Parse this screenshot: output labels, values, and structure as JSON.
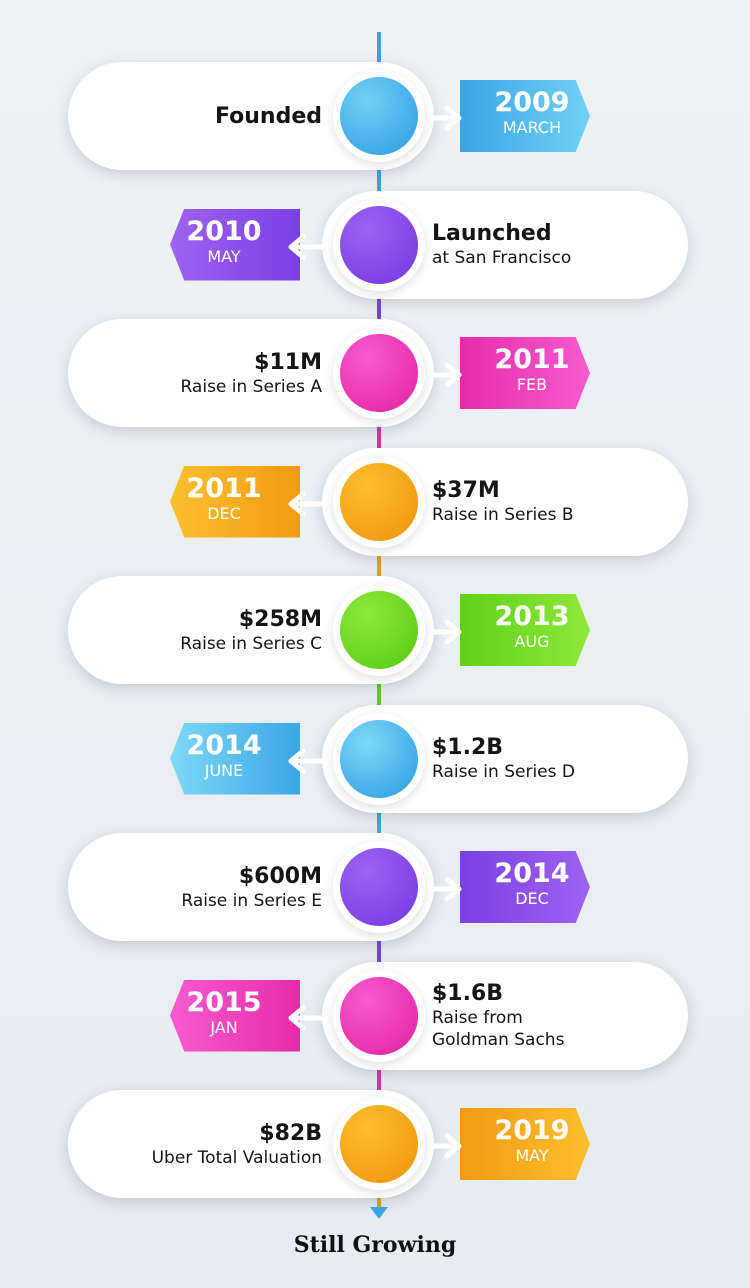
{
  "milestones": [
    {
      "title": "Founded",
      "subtitle": "",
      "year": "2009",
      "month": "MARCH",
      "side": "left",
      "color": "#3aa5e6",
      "color_light": "#6fd2f5"
    },
    {
      "title": "Launched",
      "subtitle": "at San Francisco",
      "year": "2010",
      "month": "MAY",
      "side": "right",
      "color": "#7b3fe4",
      "color_light": "#9e63f0"
    },
    {
      "title": "$11M",
      "subtitle": "Raise in Series A",
      "year": "2011",
      "month": "FEB",
      "side": "left",
      "color": "#e62ca8",
      "color_light": "#f75bd0"
    },
    {
      "title": "$37M",
      "subtitle": "Raise in Series B",
      "year": "2011",
      "month": "DEC",
      "side": "right",
      "color": "#f39a12",
      "color_light": "#fbbf30"
    },
    {
      "title": "$258M",
      "subtitle": "Raise in Series C",
      "year": "2013",
      "month": "AUG",
      "side": "left",
      "color": "#5fd11a",
      "color_light": "#8fe83a"
    },
    {
      "title": "$1.2B",
      "subtitle": "Raise in Series D",
      "year": "2014",
      "month": "JUNE",
      "side": "right",
      "color": "#39a7e5",
      "color_light": "#7fd8f7"
    },
    {
      "title": "$600M",
      "subtitle": "Raise in Series E",
      "year": "2014",
      "month": "DEC",
      "side": "left",
      "color": "#7b3fe4",
      "color_light": "#9e63f0"
    },
    {
      "title": "$1.6B",
      "subtitle": "Raise from\nGoldman Sachs",
      "year": "2015",
      "month": "JAN",
      "side": "right",
      "color": "#e62ca8",
      "color_light": "#f75bd0"
    },
    {
      "title": "$82B",
      "subtitle": "Uber Total Valuation",
      "year": "2019",
      "month": "MAY",
      "side": "left",
      "color": "#f39a12",
      "color_light": "#fbbf30"
    }
  ],
  "footer": "Still Growing"
}
